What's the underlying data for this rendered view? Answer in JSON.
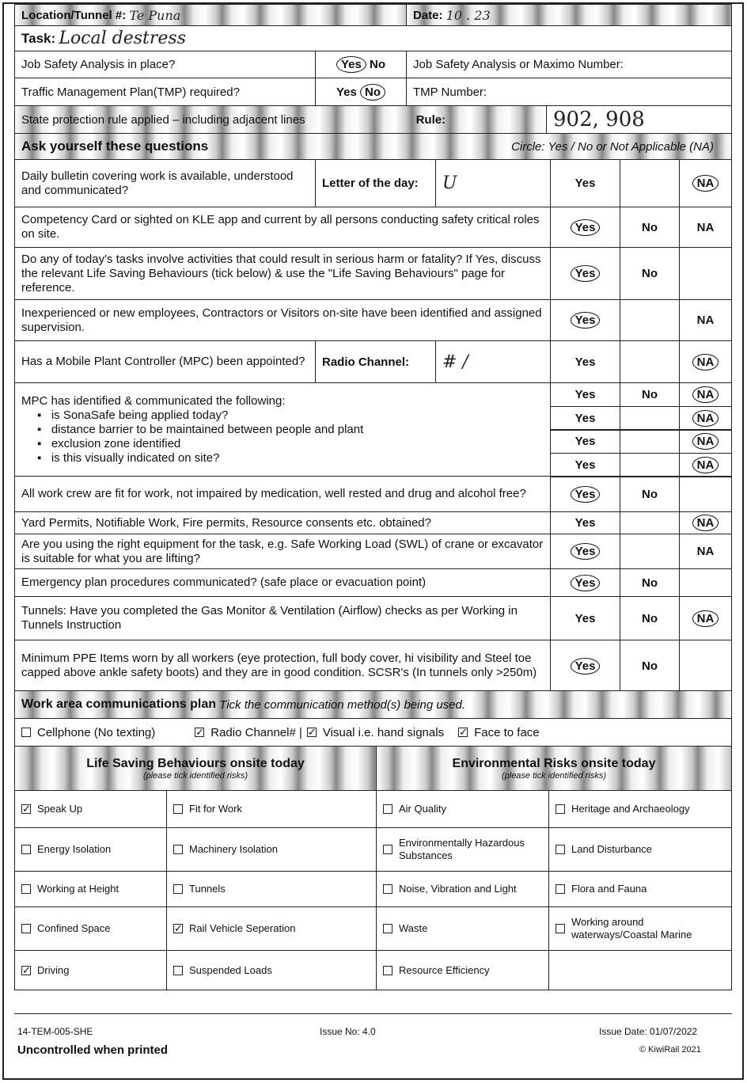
{
  "header": {
    "location_label": "Location/Tunnel #:",
    "location_value": "Te Puna",
    "date_label": "Date:",
    "date_value": "10 . 23",
    "task_label": "Task:",
    "task_value": "Local destress"
  },
  "jsa": {
    "question": "Job Safety Analysis in place?",
    "yes": "Yes",
    "no": "No",
    "circled": "Yes",
    "number_label": "Job Safety Analysis or Maximo Number:"
  },
  "tmp": {
    "question": "Traffic Management Plan(TMP) required?",
    "yes": "Yes",
    "no": "No",
    "circled": "No",
    "number_label": "TMP Number:"
  },
  "state": {
    "label": "State protection rule applied – including adjacent lines",
    "rule_label": "Rule:",
    "rule_value": "902, 908"
  },
  "ask": {
    "title": "Ask yourself these questions",
    "instruction": "Circle: Yes / No or Not Applicable (NA)"
  },
  "questions": [
    {
      "text": "Daily bulletin covering work is available, understood and communicated?",
      "extra_label": "Letter of the day:",
      "extra_value": "U",
      "yes": "Yes",
      "no": "",
      "na": "NA",
      "circled": "na"
    },
    {
      "text": "Competency Card or sighted on KLE app and current by all persons conducting safety critical roles on site.",
      "yes": "Yes",
      "no": "No",
      "na": "NA",
      "circled": "yes"
    },
    {
      "text": "Do any of today's tasks involve activities that could result in serious harm or fatality? If Yes, discuss the relevant Life Saving Behaviours (tick below) & use the \"Life Saving Behaviours\" page for reference.",
      "yes": "Yes",
      "no": "No",
      "na": "",
      "circled": "yes"
    },
    {
      "text": "Inexperienced or new employees, Contractors or Visitors on-site have been identified and assigned supervision.",
      "yes": "Yes",
      "no": "",
      "na": "NA",
      "circled": "yes"
    },
    {
      "text": "Has a Mobile Plant Controller (MPC) been appointed?",
      "extra_label": "Radio Channel:",
      "extra_value": "# /",
      "yes": "Yes",
      "no": "",
      "na": "NA",
      "circled": "na"
    },
    {
      "text": "MPC has identified & communicated the following:",
      "bullets": [
        "is SonaSafe being applied today?",
        "distance barrier to be maintained between people and plant",
        "exclusion zone identified",
        "is this visually indicated on site?"
      ],
      "sub": [
        {
          "yes": "Yes",
          "no": "No",
          "na": "NA",
          "circled": "na"
        },
        {
          "yes": "Yes",
          "no": "",
          "na": "NA",
          "circled": "na"
        },
        {
          "yes": "Yes",
          "no": "",
          "na": "NA",
          "circled": "na"
        },
        {
          "yes": "Yes",
          "no": "",
          "na": "NA",
          "circled": "na"
        }
      ]
    },
    {
      "text": "All work crew are fit for work, not impaired by medication, well rested and drug and alcohol free?",
      "yes": "Yes",
      "no": "No",
      "na": "",
      "circled": "yes"
    },
    {
      "text": "Yard Permits, Notifiable Work, Fire permits, Resource consents etc. obtained?",
      "yes": "Yes",
      "no": "",
      "na": "NA",
      "circled": "na"
    },
    {
      "text": "Are you using the right equipment for the task, e.g. Safe Working Load (SWL) of crane or excavator is suitable for what you are lifting?",
      "yes": "Yes",
      "no": "",
      "na": "NA",
      "circled": "yes"
    },
    {
      "text": "Emergency plan procedures communicated? (safe place or evacuation point)",
      "yes": "Yes",
      "no": "No",
      "na": "",
      "circled": "yes"
    },
    {
      "text": "Tunnels: Have you completed the Gas Monitor & Ventilation (Airflow) checks as per Working in Tunnels Instruction",
      "yes": "Yes",
      "no": "No",
      "na": "NA",
      "circled": "na"
    },
    {
      "text": "Minimum PPE Items worn by all workers (eye protection, full body cover, hi visibility and Steel toe capped above ankle safety boots) and they are in good condition.  SCSR's (In tunnels only >250m)",
      "yes": "Yes",
      "no": "No",
      "na": "",
      "circled": "yes"
    }
  ],
  "comms": {
    "title": "Work area communications plan",
    "instruction": "Tick the communication method(s) being used.",
    "options": [
      {
        "label": "Cellphone (No texting)",
        "checked": false
      },
      {
        "label": "Radio Channel# |",
        "checked": true
      },
      {
        "label": "Visual i.e. hand signals",
        "checked": true
      },
      {
        "label": "Face to face",
        "checked": true
      }
    ]
  },
  "lsb": {
    "title": "Life Saving Behaviours onsite today",
    "subtitle": "(please tick identified risks)",
    "items": [
      {
        "label": "Speak Up",
        "checked": true
      },
      {
        "label": "Fit for Work",
        "checked": false
      },
      {
        "label": "Energy Isolation",
        "checked": false
      },
      {
        "label": "Machinery Isolation",
        "checked": false
      },
      {
        "label": "Working at Height",
        "checked": false
      },
      {
        "label": "Tunnels",
        "checked": false
      },
      {
        "label": "Confined Space",
        "checked": false
      },
      {
        "label": "Rail Vehicle Seperation",
        "checked": true
      },
      {
        "label": "Driving",
        "checked": true
      },
      {
        "label": "Suspended Loads",
        "checked": false
      }
    ]
  },
  "env": {
    "title": "Environmental Risks onsite today",
    "subtitle": "(please tick identified risks)",
    "items": [
      {
        "label": "Air Quality",
        "checked": false
      },
      {
        "label": "Heritage and Archaeology",
        "checked": false
      },
      {
        "label": "Environmentally Hazardous Substances",
        "checked": false
      },
      {
        "label": "Land Disturbance",
        "checked": false
      },
      {
        "label": "Noise, Vibration and Light",
        "checked": false
      },
      {
        "label": "Flora and Fauna",
        "checked": false
      },
      {
        "label": "Waste",
        "checked": false
      },
      {
        "label": "Working around waterways/Coastal Marine",
        "checked": false
      },
      {
        "label": "Resource Efficiency",
        "checked": false
      }
    ]
  },
  "footer": {
    "doc_code": "14-TEM-005-SHE",
    "issue_no": "Issue No: 4.0",
    "issue_date": "Issue Date: 01/07/2022",
    "uncontrolled": "Uncontrolled when printed",
    "copyright": "© KiwiRail 2021"
  }
}
